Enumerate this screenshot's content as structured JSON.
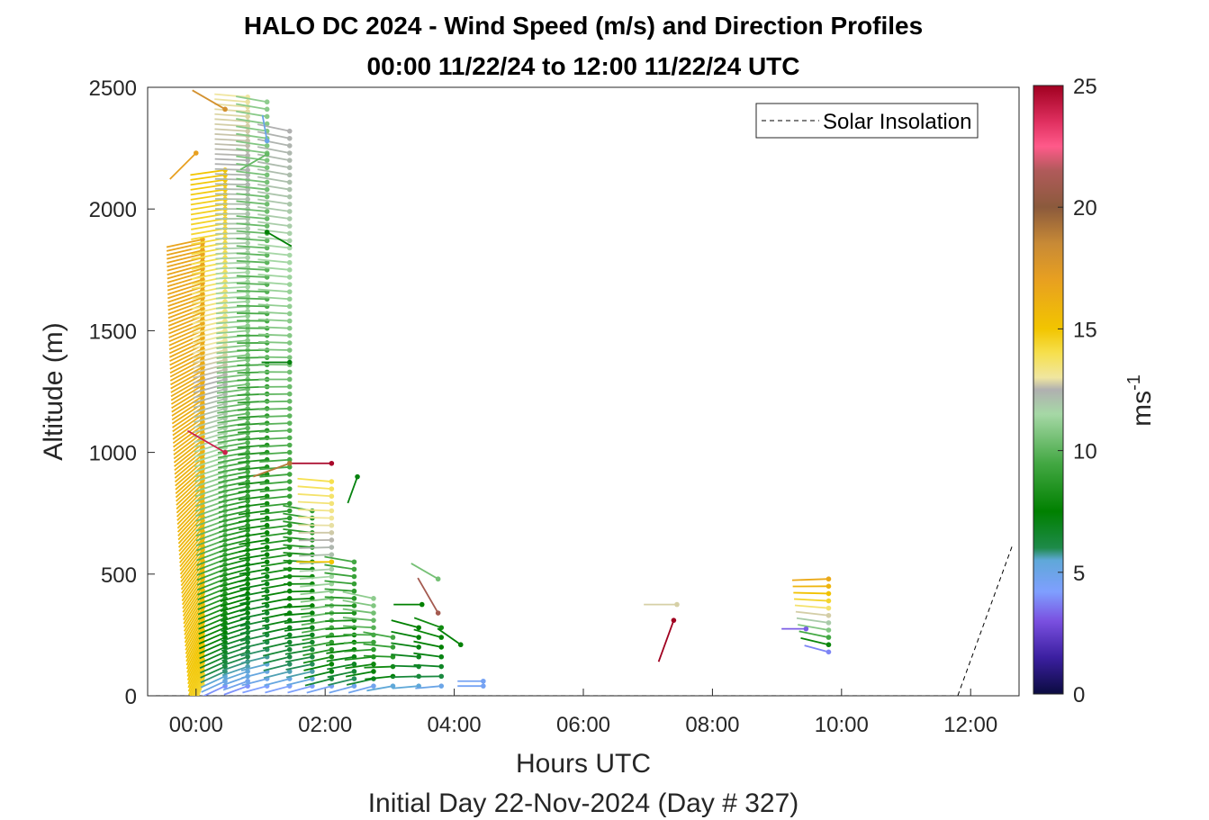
{
  "chart_data": {
    "type": "wind-barb-profile",
    "title_line1": "HALO DC 2024 - Wind Speed (m/s) and Direction Profiles",
    "title_line2": "00:00 11/22/24 to 12:00 11/22/24  UTC",
    "xlabel": "Hours UTC",
    "ylabel": "Altitude (m)",
    "subtitle": "Initial Day 22-Nov-2024 (Day # 327)",
    "colorbar_label": "ms",
    "colorbar_label_exp": "-1",
    "xlim": [
      -0.75,
      12.75
    ],
    "ylim": [
      0,
      2500
    ],
    "x_ticks": [
      0,
      2,
      4,
      6,
      8,
      10,
      12
    ],
    "x_tick_labels": [
      "00:00",
      "02:00",
      "04:00",
      "06:00",
      "08:00",
      "10:00",
      "12:00"
    ],
    "y_ticks": [
      0,
      500,
      1000,
      1500,
      2000,
      2500
    ],
    "colorbar_lim": [
      0,
      25
    ],
    "colorbar_ticks": [
      0,
      5,
      10,
      15,
      20,
      25
    ],
    "legend": {
      "entries": [
        "Solar Insolation"
      ],
      "placement": "top-right"
    },
    "colormap": [
      [
        0,
        "#0b0b40"
      ],
      [
        1.5,
        "#3b1fa0"
      ],
      [
        3,
        "#7a50e0"
      ],
      [
        4.2,
        "#7f9fff"
      ],
      [
        5.5,
        "#5fa8d8"
      ],
      [
        6,
        "#1e8a4a"
      ],
      [
        7.5,
        "#008000"
      ],
      [
        9.5,
        "#44a844"
      ],
      [
        11.5,
        "#a6d8a6"
      ],
      [
        12.5,
        "#b0b0b0"
      ],
      [
        13,
        "#f0e6a0"
      ],
      [
        14,
        "#f6e04e"
      ],
      [
        15,
        "#f2c500"
      ],
      [
        17,
        "#e8a020"
      ],
      [
        18.5,
        "#c88a36"
      ],
      [
        20,
        "#8b5a3c"
      ],
      [
        21.5,
        "#b05a5a"
      ],
      [
        22.5,
        "#ff5a8a"
      ],
      [
        23.5,
        "#e03060"
      ],
      [
        25,
        "#a00020"
      ]
    ],
    "profiles": [
      {
        "t": 0.1,
        "v0": 14.2,
        "v1": 16.8,
        "dir0": 200,
        "dir1": 258,
        "levels": [
          45,
          60,
          75,
          90,
          105,
          120,
          135,
          150,
          165,
          180,
          195,
          210,
          225,
          240,
          255,
          270,
          285,
          300,
          315,
          330,
          345,
          360,
          375,
          390,
          405,
          420,
          435,
          450,
          465,
          480,
          495,
          510,
          525,
          540,
          555,
          570,
          585,
          600,
          615,
          630,
          645,
          660,
          675,
          690,
          705,
          720,
          735,
          750,
          765,
          780,
          795,
          810,
          825,
          840,
          855,
          870,
          885,
          900,
          915,
          930,
          945,
          960,
          975,
          990,
          1005,
          1020,
          1035,
          1050,
          1065,
          1080,
          1095,
          1110,
          1125,
          1140,
          1155,
          1170,
          1185,
          1200,
          1215,
          1230,
          1245,
          1260,
          1275,
          1290,
          1305,
          1320,
          1335,
          1350,
          1365,
          1380,
          1395,
          1410,
          1425,
          1440,
          1455,
          1470,
          1485,
          1500,
          1515,
          1530,
          1545,
          1560,
          1575,
          1590,
          1605,
          1620,
          1635,
          1650,
          1665,
          1680,
          1695,
          1710,
          1725,
          1740,
          1755,
          1770,
          1785,
          1800,
          1815,
          1830,
          1845,
          1860,
          1875
        ]
      },
      {
        "t": 0.45,
        "v0": 4.0,
        "v1": 15.0,
        "dir0": 245,
        "dir1": 262,
        "levels": [
          40,
          60,
          80,
          100,
          120,
          140,
          160,
          180,
          200,
          220,
          240,
          260,
          280,
          300,
          320,
          340,
          360,
          380,
          400,
          420,
          440,
          460,
          480,
          500,
          520,
          540,
          560,
          580,
          600,
          620,
          640,
          660,
          680,
          700,
          720,
          740,
          760,
          780,
          800,
          820,
          840,
          860,
          880,
          900,
          920,
          940,
          960,
          980,
          1000,
          1020,
          1040,
          1060,
          1080,
          1100,
          1120,
          1140,
          1160,
          1180,
          1200,
          1220,
          1240,
          1260,
          1280,
          1300,
          1320,
          1340,
          1360,
          1380,
          1400,
          1420,
          1440,
          1460,
          1480,
          1500,
          1520,
          1540,
          1560,
          1580,
          1600,
          1620,
          1640,
          1660,
          1680,
          1700,
          1720,
          1740,
          1760,
          1780,
          1800,
          1820,
          1840,
          1860,
          1880,
          1900,
          1920,
          1940,
          1960,
          1980,
          2000,
          2020,
          2040,
          2060,
          2080,
          2100,
          2120,
          2140,
          2160
        ]
      },
      {
        "t": 0.8,
        "v0": 4.0,
        "v1": 13.0,
        "dir0": 250,
        "dir1": 275,
        "levels": [
          40,
          60,
          80,
          100,
          120,
          140,
          160,
          180,
          200,
          220,
          240,
          260,
          280,
          300,
          320,
          340,
          360,
          380,
          400,
          420,
          440,
          460,
          480,
          500,
          520,
          540,
          560,
          580,
          600,
          620,
          640,
          660,
          680,
          700,
          720,
          740,
          760,
          780,
          800,
          820,
          840,
          860,
          880,
          900,
          920,
          940,
          960,
          980,
          1000,
          1020,
          1040,
          1060,
          1080,
          1100,
          1120,
          1140,
          1160,
          1180,
          1200,
          1220,
          1240,
          1260,
          1280,
          1300,
          1320,
          1340,
          1360,
          1380,
          1400,
          1420,
          1440,
          1460,
          1480,
          1500,
          1520,
          1540,
          1560,
          1580,
          1600,
          1620,
          1640,
          1660,
          1680,
          1700,
          1720,
          1740,
          1760,
          1780,
          1800,
          1820,
          1840,
          1860,
          1880,
          1900,
          1920,
          1940,
          1960,
          1980,
          2000,
          2020,
          2040,
          2060,
          2080,
          2100,
          2120,
          2140,
          2160,
          2180,
          2200,
          2220,
          2240,
          2260,
          2280,
          2300,
          2320,
          2340,
          2360,
          2380,
          2400,
          2420,
          2440,
          2460
        ]
      },
      {
        "t": 1.1,
        "v0": 4.2,
        "v1": 11.0,
        "dir0": 255,
        "dir1": 280,
        "levels": [
          40,
          70,
          100,
          130,
          160,
          190,
          220,
          250,
          280,
          310,
          340,
          370,
          400,
          430,
          460,
          490,
          520,
          550,
          580,
          610,
          640,
          670,
          700,
          730,
          760,
          790,
          820,
          850,
          880,
          910,
          940,
          970,
          1000,
          1030,
          1060,
          1090,
          1120,
          1150,
          1180,
          1210,
          1240,
          1270,
          1300,
          1330,
          1360,
          1390,
          1420,
          1450,
          1480,
          1510,
          1540,
          1570,
          1600,
          1630,
          1660,
          1690,
          1720,
          1750,
          1780,
          1810,
          1840,
          1870,
          1900,
          1930,
          1960,
          1990,
          2020,
          2050,
          2080,
          2110,
          2140,
          2170,
          2200,
          2230,
          2260,
          2290,
          2320,
          2350,
          2380,
          2410,
          2440
        ]
      },
      {
        "t": 1.45,
        "v0": 4.3,
        "v1": 12.5,
        "dir0": 255,
        "dir1": 282,
        "levels": [
          40,
          70,
          100,
          130,
          160,
          190,
          220,
          250,
          280,
          310,
          340,
          370,
          400,
          430,
          460,
          490,
          520,
          550,
          580,
          610,
          640,
          670,
          700,
          730,
          760,
          790,
          820,
          850,
          880,
          910,
          940,
          970,
          1000,
          1030,
          1060,
          1090,
          1120,
          1150,
          1180,
          1210,
          1240,
          1270,
          1300,
          1330,
          1360,
          1390,
          1420,
          1450,
          1480,
          1510,
          1540,
          1570,
          1600,
          1630,
          1660,
          1690,
          1720,
          1750,
          1780,
          1810,
          1840,
          1870,
          1900,
          1930,
          1960,
          1990,
          2020,
          2050,
          2080,
          2110,
          2140,
          2170,
          2200,
          2230,
          2260,
          2290,
          2320
        ]
      },
      {
        "t": 1.8,
        "v0": 4.3,
        "v1": 9.0,
        "dir0": 255,
        "dir1": 280,
        "levels": [
          40,
          70,
          100,
          130,
          160,
          190,
          220,
          250,
          280,
          310,
          340,
          370,
          400,
          430,
          460,
          490,
          520,
          550,
          580,
          610,
          640,
          670,
          700,
          730,
          760
        ]
      },
      {
        "t": 2.1,
        "v0": 4.6,
        "v1": 14.0,
        "dir0": 255,
        "dir1": 275,
        "levels": [
          40,
          70,
          100,
          130,
          160,
          190,
          220,
          250,
          280,
          310,
          340,
          370,
          400,
          430,
          460,
          490,
          520,
          550,
          580,
          610,
          640,
          670,
          700,
          730,
          760,
          790,
          820,
          850,
          880
        ]
      },
      {
        "t": 2.45,
        "v0": 4.8,
        "v1": 9.5,
        "dir0": 255,
        "dir1": 280,
        "levels": [
          40,
          70,
          100,
          130,
          160,
          190,
          220,
          250,
          280,
          310,
          340,
          370,
          400,
          430,
          460,
          490,
          520,
          550
        ]
      },
      {
        "t": 2.75,
        "v0": 4.8,
        "v1": 11.0,
        "dir0": 255,
        "dir1": 282,
        "levels": [
          40,
          70,
          100,
          130,
          160,
          190,
          220,
          250,
          280,
          310,
          340,
          370,
          400
        ]
      },
      {
        "t": 3.05,
        "v0": 5.5,
        "v1": 9.5,
        "dir0": 260,
        "dir1": 280,
        "levels": [
          40,
          80,
          120,
          160,
          200,
          240
        ]
      },
      {
        "t": 3.45,
        "v0": 5.5,
        "v1": 7.5,
        "dir0": 265,
        "dir1": 285,
        "levels": [
          40,
          80,
          120,
          160,
          200,
          240,
          280
        ]
      },
      {
        "t": 3.8,
        "v0": 5.0,
        "v1": 8.0,
        "dir0": 265,
        "dir1": 290,
        "levels": [
          40,
          80,
          120,
          160,
          200,
          240,
          280
        ]
      },
      {
        "t": 4.45,
        "v0": 4.6,
        "v1": 4.6,
        "dir0": 270,
        "dir1": 270,
        "levels": [
          40,
          60
        ]
      },
      {
        "t": 9.8,
        "v0": 3.8,
        "v1": 16.5,
        "dir0": 285,
        "dir1": 268,
        "levels": [
          180,
          210,
          240,
          270,
          300,
          330,
          360,
          390,
          420,
          450,
          480
        ]
      }
    ],
    "isolated_barbs": [
      {
        "t": 2.1,
        "z": 955,
        "speed": 24.8,
        "dir": 270
      },
      {
        "t": 2.5,
        "z": 900,
        "speed": 7.2,
        "dir": 200
      },
      {
        "t": 3.75,
        "z": 480,
        "speed": 10.5,
        "dir": 300
      },
      {
        "t": 3.5,
        "z": 375,
        "speed": 7.5,
        "dir": 270
      },
      {
        "t": 3.75,
        "z": 340,
        "speed": 21.0,
        "dir": 330
      },
      {
        "t": 4.1,
        "z": 210,
        "speed": 7.4,
        "dir": 305
      },
      {
        "t": 7.45,
        "z": 375,
        "speed": 12.8,
        "dir": 270
      },
      {
        "t": 7.4,
        "z": 310,
        "speed": 25.0,
        "dir": 200
      },
      {
        "t": 9.45,
        "z": 275,
        "speed": 3.2,
        "dir": 270
      },
      {
        "t": 0.0,
        "z": 2230,
        "speed": 17.0,
        "dir": 225
      },
      {
        "t": 0.45,
        "z": 2410,
        "speed": 18.0,
        "dir": 300
      },
      {
        "t": 1.1,
        "z": 2280,
        "speed": 5.0,
        "dir": 350
      },
      {
        "t": 1.1,
        "z": 2225,
        "speed": 10.2,
        "dir": 240
      },
      {
        "t": 1.1,
        "z": 1905,
        "speed": 7.4,
        "dir": 120
      },
      {
        "t": 1.45,
        "z": 1370,
        "speed": 7.2,
        "dir": 270
      },
      {
        "t": 1.45,
        "z": 955,
        "speed": 19.0,
        "dir": 250
      },
      {
        "t": 0.45,
        "z": 1000,
        "speed": 24.0,
        "dir": 300
      },
      {
        "t": 2.1,
        "z": 550,
        "speed": 15.0,
        "dir": 270
      }
    ],
    "solar_insolation": {
      "x": [
        -0.75,
        11.8,
        12.65
      ],
      "y": [
        0,
        0,
        620
      ]
    }
  }
}
